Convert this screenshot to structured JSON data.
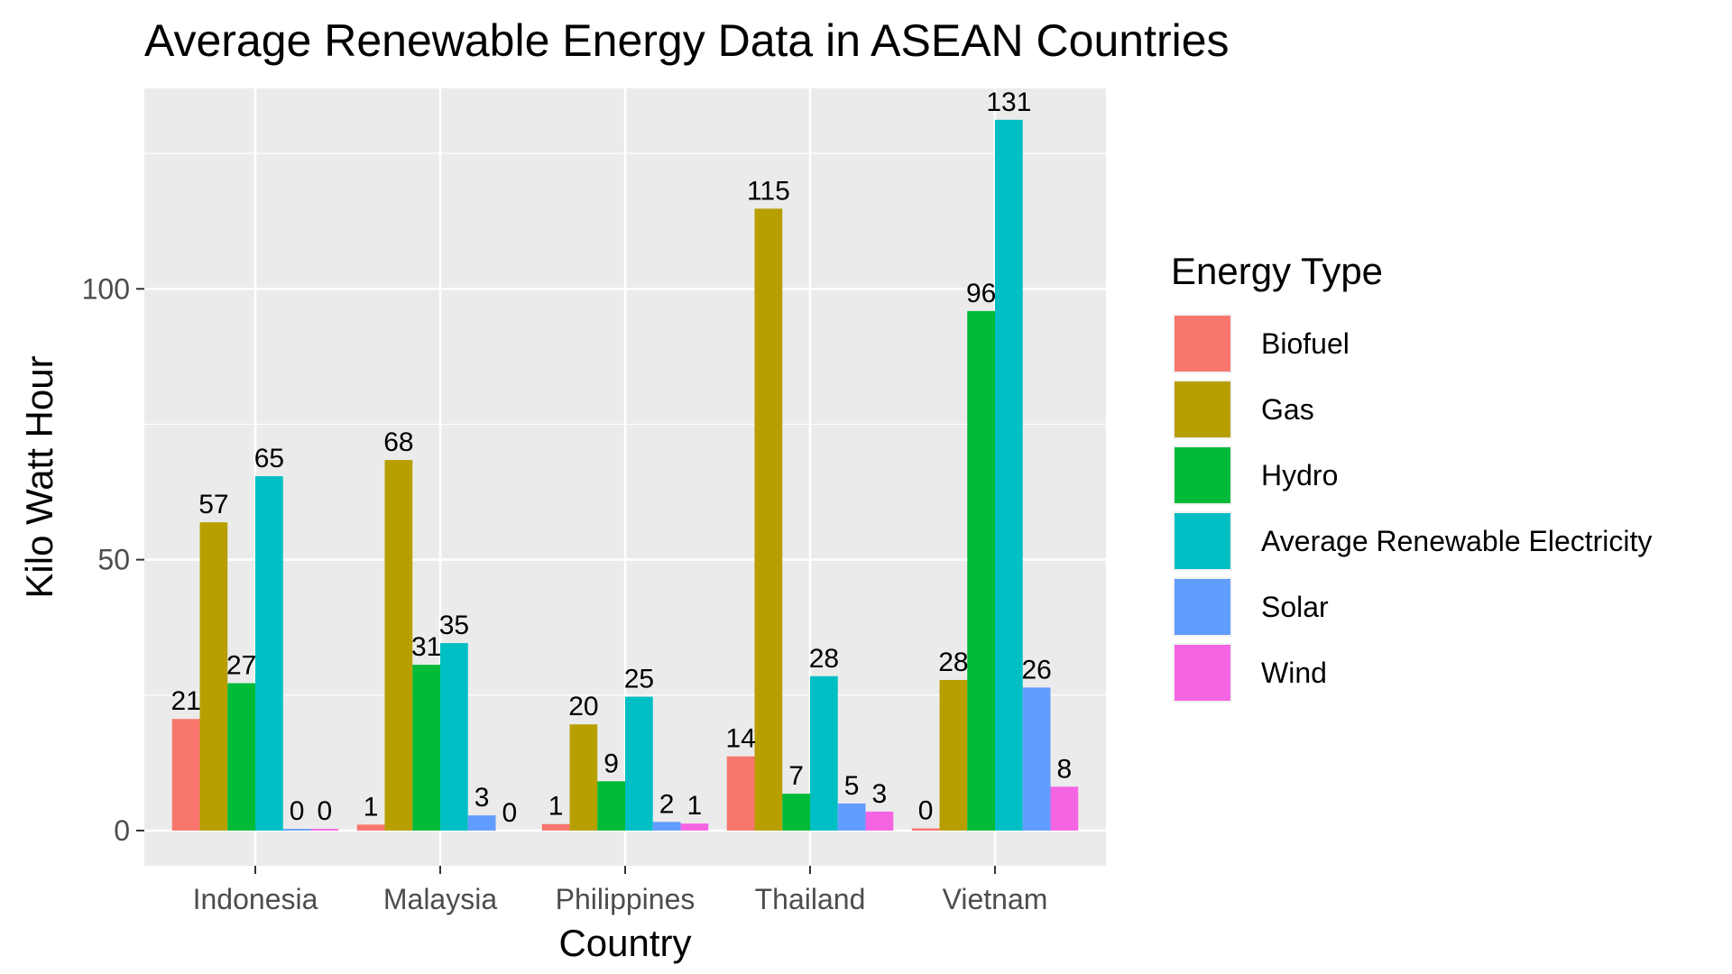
{
  "chart_data": {
    "type": "bar",
    "title": "Average Renewable Energy Data in ASEAN Countries",
    "xlabel": "Country",
    "ylabel": "Kilo Watt Hour",
    "categories": [
      "Indonesia",
      "Malaysia",
      "Philippines",
      "Thailand",
      "Vietnam"
    ],
    "ylim": [
      -6.5,
      137
    ],
    "yticks": [
      0,
      50,
      100
    ],
    "grid": true,
    "legend_title": "Energy Type",
    "legend_position": "right",
    "series": [
      {
        "name": "Biofuel",
        "color": "#F8766D",
        "values": [
          20.6,
          1.1,
          1.2,
          13.7,
          0.4
        ],
        "labels": [
          "21",
          "1",
          "1",
          "14",
          "0"
        ]
      },
      {
        "name": "Gas",
        "color": "#B79F00",
        "values": [
          56.9,
          68.4,
          19.6,
          114.8,
          27.8
        ],
        "labels": [
          "57",
          "68",
          "20",
          "115",
          "28"
        ]
      },
      {
        "name": "Hydro",
        "color": "#00BA38",
        "values": [
          27.2,
          30.6,
          9.1,
          6.8,
          95.9
        ],
        "labels": [
          "27",
          "31",
          "9",
          "7",
          "96"
        ]
      },
      {
        "name": "Average Renewable Electricity",
        "color": "#00BFC4",
        "values": [
          65.4,
          34.6,
          24.7,
          28.5,
          131.2
        ],
        "labels": [
          "65",
          "35",
          "25",
          "28",
          "131"
        ]
      },
      {
        "name": "Solar",
        "color": "#619CFF",
        "values": [
          0.3,
          2.8,
          1.6,
          5.0,
          26.4
        ],
        "labels": [
          "0",
          "3",
          "2",
          "5",
          "26"
        ]
      },
      {
        "name": "Wind",
        "color": "#F564E3",
        "values": [
          0.3,
          0.0,
          1.3,
          3.5,
          8.1
        ],
        "labels": [
          "0",
          "0",
          "1",
          "3",
          "8"
        ]
      }
    ]
  }
}
